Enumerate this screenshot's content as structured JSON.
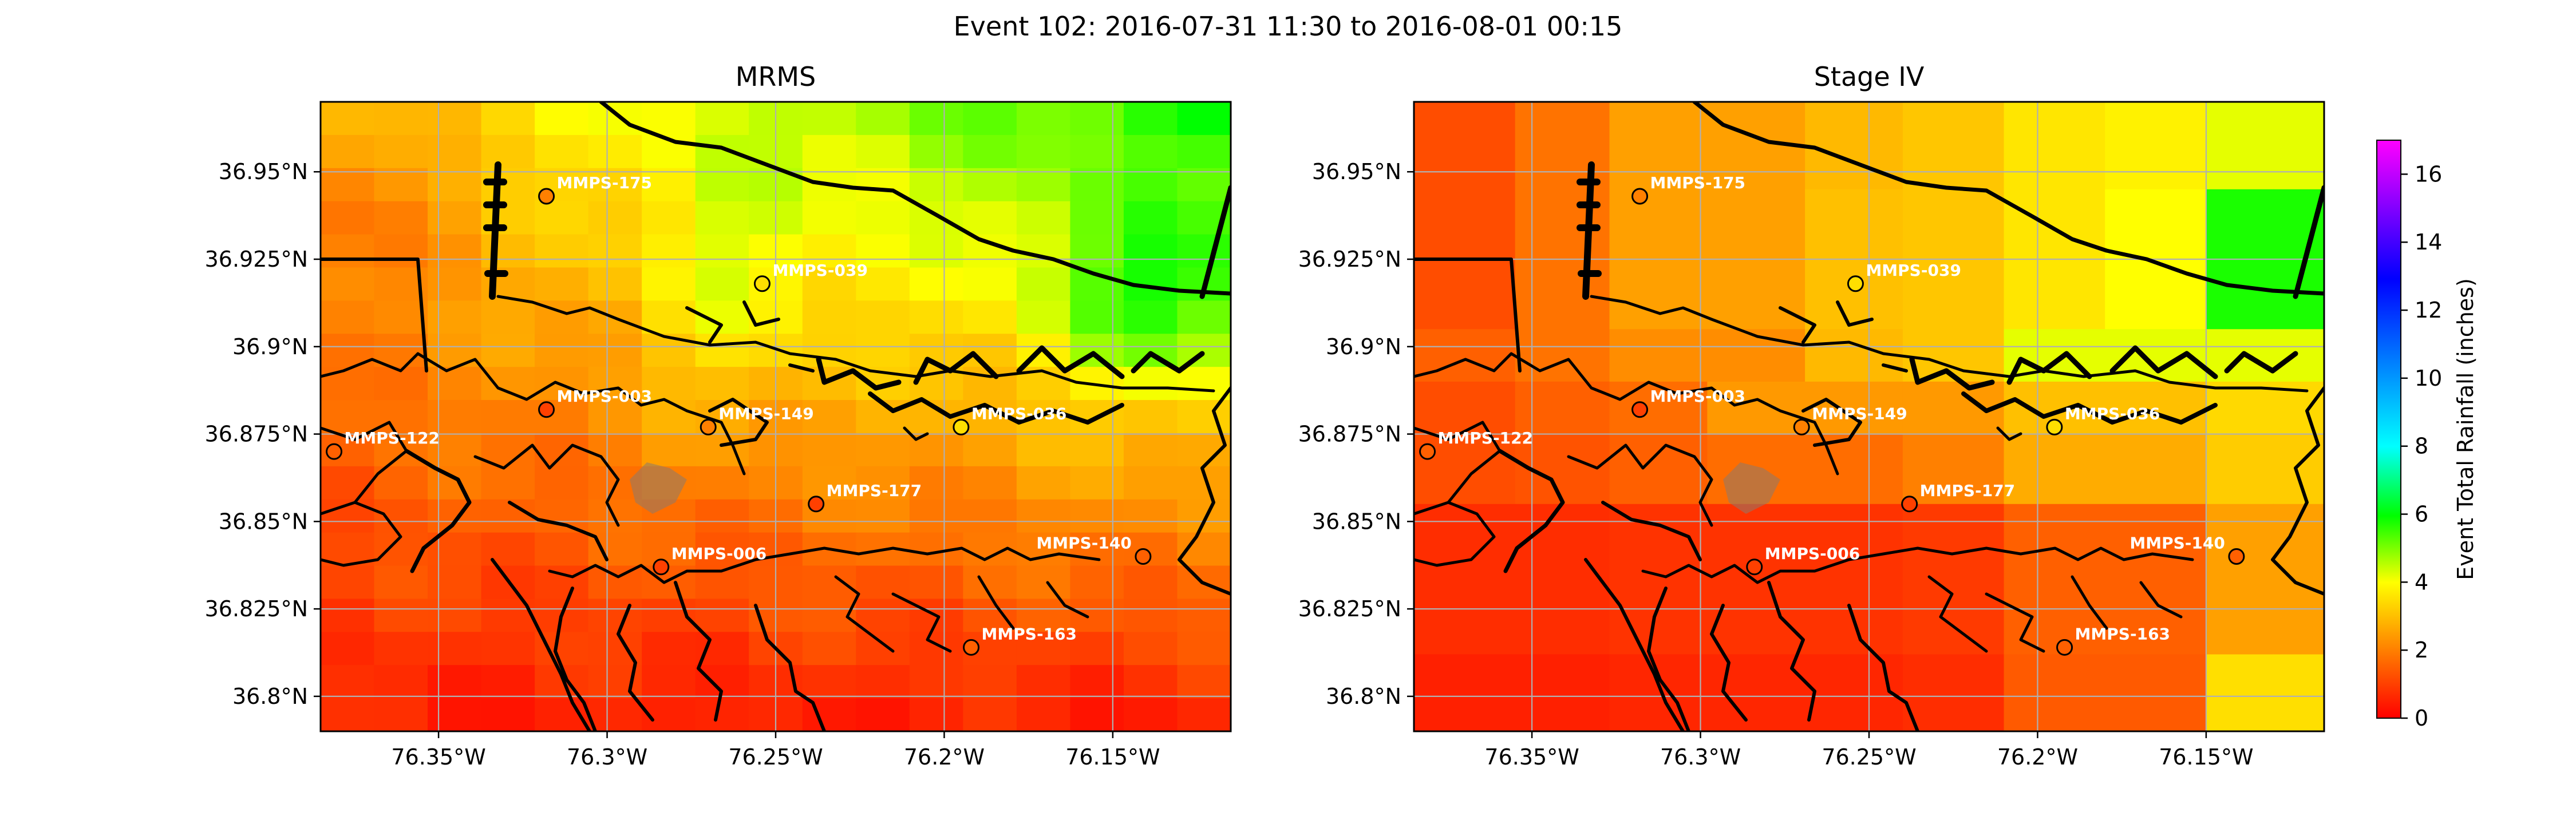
{
  "figure_title": "Event 102: 2016-07-31 11:30 to 2016-08-01 00:15",
  "colormap": [
    "#ff0000",
    "#ff8000",
    "#ffff00",
    "#00ff00",
    "#00ffff",
    "#0000ff",
    "#ff00ff"
  ],
  "coastline_color": "#000000",
  "gauge_color_scale": "same as rainfall colormap",
  "chart_data": [
    {
      "type": "heatmap",
      "title": "MRMS",
      "xlim": [
        -76.385,
        -76.115
      ],
      "ylim": [
        36.79,
        36.97
      ],
      "xticks": [
        -76.35,
        -76.3,
        -76.25,
        -76.2,
        -76.15
      ],
      "xtick_labels": [
        "76.35°W",
        "76.3°W",
        "76.25°W",
        "76.2°W",
        "76.15°W"
      ],
      "yticks": [
        36.8,
        36.825,
        36.85,
        36.875,
        36.9,
        36.925,
        36.95
      ],
      "ytick_labels": [
        "36.8°N",
        "36.825°N",
        "36.85°N",
        "36.875°N",
        "36.9°N",
        "36.925°N",
        "36.95°N"
      ],
      "grid": true,
      "field_description": "rainfall increases toward the northeast (about 5-6 in) and is lowest in the south (about 0.5-1 in)",
      "gauges": [
        {
          "id": "MMPS-175",
          "lon": -76.318,
          "lat": 36.943,
          "rain_in": 2.0
        },
        {
          "id": "MMPS-039",
          "lon": -76.254,
          "lat": 36.918,
          "rain_in": 3.5
        },
        {
          "id": "MMPS-003",
          "lon": -76.318,
          "lat": 36.882,
          "rain_in": 1.0
        },
        {
          "id": "MMPS-149",
          "lon": -76.27,
          "lat": 36.877,
          "rain_in": 2.0
        },
        {
          "id": "MMPS-036",
          "lon": -76.195,
          "lat": 36.877,
          "rain_in": 3.5
        },
        {
          "id": "MMPS-122",
          "lon": -76.381,
          "lat": 36.87,
          "rain_in": 1.5
        },
        {
          "id": "MMPS-177",
          "lon": -76.238,
          "lat": 36.855,
          "rain_in": 1.0
        },
        {
          "id": "MMPS-006",
          "lon": -76.284,
          "lat": 36.837,
          "rain_in": 1.0
        },
        {
          "id": "MMPS-140",
          "lon": -76.141,
          "lat": 36.84,
          "rain_in": 1.5
        },
        {
          "id": "MMPS-163",
          "lon": -76.192,
          "lat": 36.814,
          "rain_in": 1.5
        }
      ]
    },
    {
      "type": "heatmap",
      "title": "Stage IV",
      "xlim": [
        -76.385,
        -76.115
      ],
      "ylim": [
        36.79,
        36.97
      ],
      "xticks": [
        -76.35,
        -76.3,
        -76.25,
        -76.2,
        -76.15
      ],
      "xtick_labels": [
        "76.35°W",
        "76.3°W",
        "76.25°W",
        "76.2°W",
        "76.15°W"
      ],
      "yticks": [
        36.8,
        36.825,
        36.85,
        36.875,
        36.9,
        36.925,
        36.95
      ],
      "ytick_labels": [
        "36.8°N",
        "36.825°N",
        "36.85°N",
        "36.875°N",
        "36.9°N",
        "36.925°N",
        "36.95°N"
      ],
      "grid": true,
      "grid_values_in": [
        [
          1.2,
          1.8,
          2.5,
          2.5,
          2.9,
          3.1,
          3.6,
          3.8,
          4.2,
          4.2
        ],
        [
          1.2,
          1.8,
          2.5,
          2.5,
          3.0,
          3.1,
          3.6,
          4.0,
          5.8,
          5.8
        ],
        [
          1.2,
          1.8,
          2.5,
          2.5,
          3.0,
          3.1,
          3.6,
          4.0,
          5.8,
          5.8
        ],
        [
          1.5,
          1.8,
          2.2,
          2.2,
          2.9,
          3.1,
          4.2,
          4.2,
          4.2,
          4.2
        ],
        [
          1.2,
          1.5,
          1.7,
          2.4,
          2.4,
          2.4,
          3.0,
          3.0,
          3.4,
          3.4
        ],
        [
          1.2,
          1.3,
          1.5,
          1.7,
          1.7,
          2.0,
          2.7,
          2.7,
          3.2,
          3.2
        ],
        [
          0.7,
          0.7,
          0.8,
          0.8,
          0.8,
          0.9,
          1.5,
          1.5,
          2.5,
          2.5
        ],
        [
          0.7,
          0.7,
          0.8,
          0.8,
          0.8,
          0.9,
          1.5,
          1.5,
          2.5,
          2.5
        ],
        [
          0.5,
          0.5,
          0.6,
          0.6,
          0.6,
          0.7,
          1.4,
          1.4,
          3.5,
          3.5
        ]
      ],
      "grid_lon_edges": [
        -76.385,
        -76.355,
        -76.327,
        -76.298,
        -76.269,
        -76.24,
        -76.21,
        -76.18,
        -76.15,
        -76.13,
        -76.115
      ],
      "grid_lat_edges": [
        36.97,
        36.945,
        36.925,
        36.905,
        36.89,
        36.875,
        36.855,
        36.832,
        36.812,
        36.79
      ],
      "gauges": [
        {
          "id": "MMPS-175",
          "lon": -76.318,
          "lat": 36.943,
          "rain_in": 2.0
        },
        {
          "id": "MMPS-039",
          "lon": -76.254,
          "lat": 36.918,
          "rain_in": 3.5
        },
        {
          "id": "MMPS-003",
          "lon": -76.318,
          "lat": 36.882,
          "rain_in": 1.0
        },
        {
          "id": "MMPS-149",
          "lon": -76.27,
          "lat": 36.877,
          "rain_in": 2.0
        },
        {
          "id": "MMPS-036",
          "lon": -76.195,
          "lat": 36.877,
          "rain_in": 3.5
        },
        {
          "id": "MMPS-122",
          "lon": -76.381,
          "lat": 36.87,
          "rain_in": 1.5
        },
        {
          "id": "MMPS-177",
          "lon": -76.238,
          "lat": 36.855,
          "rain_in": 1.0
        },
        {
          "id": "MMPS-006",
          "lon": -76.284,
          "lat": 36.837,
          "rain_in": 1.0
        },
        {
          "id": "MMPS-140",
          "lon": -76.141,
          "lat": 36.84,
          "rain_in": 1.5
        },
        {
          "id": "MMPS-163",
          "lon": -76.192,
          "lat": 36.814,
          "rain_in": 1.5
        }
      ]
    }
  ],
  "colorbar": {
    "label": "Event Total Rainfall (inches)",
    "min": 0,
    "max": 17,
    "ticks": [
      0,
      2,
      4,
      6,
      8,
      10,
      12,
      14,
      16
    ],
    "tick_labels": [
      "0",
      "2",
      "4",
      "6",
      "8",
      "10",
      "12",
      "14",
      "16"
    ]
  }
}
